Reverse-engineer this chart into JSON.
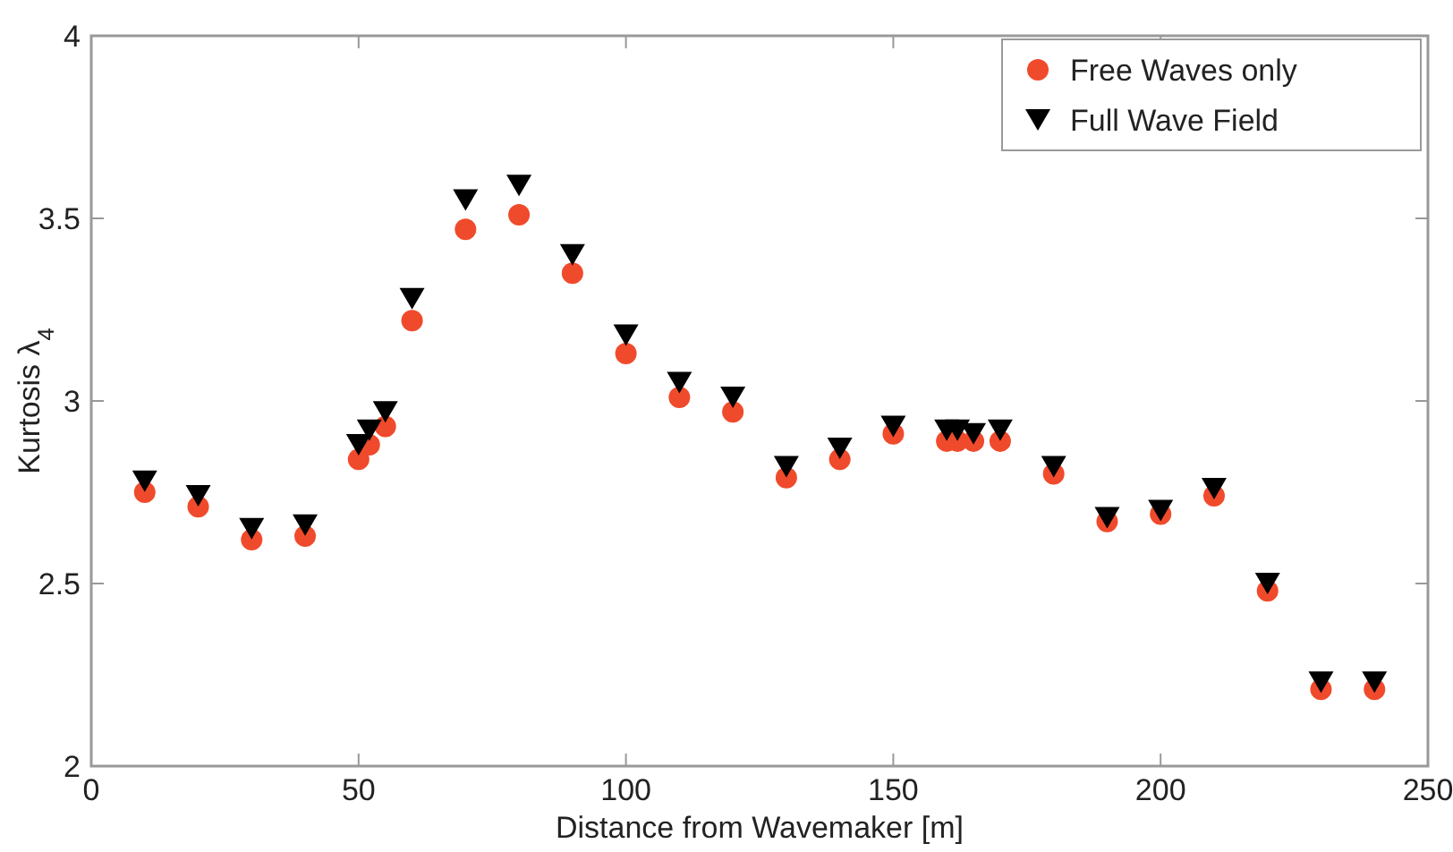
{
  "chart_data": {
    "type": "scatter",
    "xlabel": "Distance from Wavemaker [m]",
    "ylabel": "Kurtosis  λ$_{4}$",
    "x": [
      10,
      20,
      30,
      40,
      50,
      52,
      55,
      60,
      70,
      80,
      90,
      100,
      110,
      120,
      130,
      140,
      150,
      160,
      162,
      165,
      170,
      180,
      190,
      200,
      210,
      220,
      230,
      240
    ],
    "series": [
      {
        "name": "Free Waves only",
        "color": "#f04a2c",
        "marker": "circle",
        "values": [
          2.75,
          2.71,
          2.62,
          2.63,
          2.84,
          2.88,
          2.93,
          3.22,
          3.47,
          3.51,
          3.35,
          3.13,
          3.01,
          2.97,
          2.79,
          2.84,
          2.91,
          2.89,
          2.89,
          2.89,
          2.89,
          2.8,
          2.67,
          2.69,
          2.74,
          2.48,
          2.21,
          2.21
        ]
      },
      {
        "name": "Full Wave Field",
        "color": "#000000",
        "marker": "triangle",
        "values": [
          2.78,
          2.74,
          2.65,
          2.66,
          2.88,
          2.92,
          2.97,
          3.28,
          3.55,
          3.59,
          3.4,
          3.18,
          3.05,
          3.01,
          2.82,
          2.87,
          2.93,
          2.92,
          2.92,
          2.91,
          2.92,
          2.82,
          2.68,
          2.7,
          2.76,
          2.5,
          2.23,
          2.23
        ]
      }
    ],
    "xlim": [
      0,
      250
    ],
    "xticks": [
      0,
      50,
      100,
      150,
      200,
      250
    ],
    "ylim": [
      2,
      4
    ],
    "yticks": [
      2,
      2.5,
      3,
      3.5,
      4
    ],
    "grid": false,
    "legend": "top right"
  }
}
